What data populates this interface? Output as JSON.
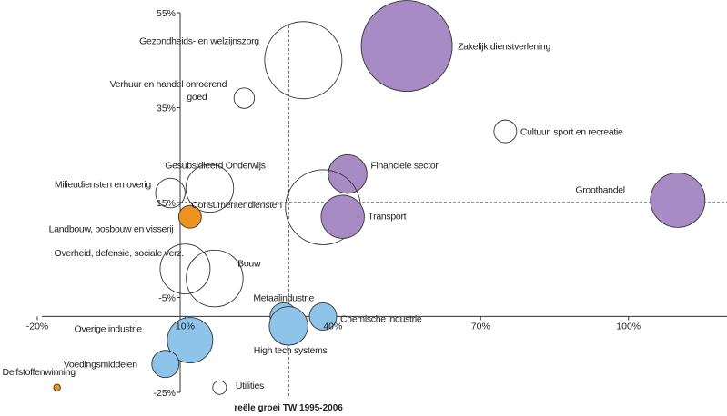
{
  "chart_data": {
    "type": "scatter",
    "subtype": "bubble",
    "xlabel": "reële groei TW 1995-2006",
    "ylabel": "",
    "xlim": [
      -20,
      120
    ],
    "ylim": [
      -25,
      55
    ],
    "x_ticks": [
      -20,
      10,
      40,
      70,
      100
    ],
    "x_tick_labels": [
      "-20%",
      "10%",
      "40%",
      "70%",
      "100%"
    ],
    "y_ticks": [
      55,
      35,
      15,
      -5,
      -25
    ],
    "y_tick_labels": [
      "55%",
      "35%",
      "15%",
      "-5%",
      "-25%"
    ],
    "reference_lines": {
      "x": 31,
      "y": 15
    },
    "grid": false,
    "legend": "none",
    "colors": {
      "purple": "#a78bc4",
      "blue": "#8ec3ea",
      "orange": "#f0921e",
      "white": "#ffffff",
      "outline": "#333333"
    },
    "points": [
      {
        "label": "Zakelijk dienstverlening",
        "x": 55,
        "y": 48,
        "size": 40,
        "color": "purple"
      },
      {
        "label": "Gezondheids- en welzijnszorg",
        "x": 34,
        "y": 45,
        "size": 34,
        "color": "white"
      },
      {
        "label": "Verhuur en handel onroerend goed",
        "x": 22,
        "y": 37,
        "size": 9,
        "color": "white"
      },
      {
        "label": "Cultuur, sport en recreatie",
        "x": 75,
        "y": 30,
        "size": 10,
        "color": "white"
      },
      {
        "label": "Financiele sector",
        "x": 43,
        "y": 21,
        "size": 17,
        "color": "purple"
      },
      {
        "label": "Groothandel",
        "x": 110,
        "y": 15.5,
        "size": 24,
        "color": "purple"
      },
      {
        "label": "Gesubsidieerd Onderwijs",
        "x": 15,
        "y": 18,
        "size": 21,
        "color": "white"
      },
      {
        "label": "Milieudiensten en overig",
        "x": 7,
        "y": 17,
        "size": 13,
        "color": "white"
      },
      {
        "label": "Consumentendiensten",
        "x": 38,
        "y": 14,
        "size": 33,
        "color": "white"
      },
      {
        "label": "Transport",
        "x": 42,
        "y": 12,
        "size": 19,
        "color": "purple"
      },
      {
        "label": "Landbouw, bosbouw en visserij",
        "x": 11,
        "y": 12,
        "size": 10,
        "color": "orange"
      },
      {
        "label": "Overheid, defensie, sociale verz.",
        "x": 10,
        "y": 1,
        "size": 22,
        "color": "white"
      },
      {
        "label": "Bouw",
        "x": 16,
        "y": -1,
        "size": 25,
        "color": "white"
      },
      {
        "label": "Metaalindustrie",
        "x": 30,
        "y": -9,
        "size": 12,
        "color": "blue"
      },
      {
        "label": "High tech systems",
        "x": 31,
        "y": -11,
        "size": 17,
        "color": "blue"
      },
      {
        "label": "Chemische industrie",
        "x": 38,
        "y": -9,
        "size": 12,
        "color": "blue"
      },
      {
        "label": "Overige industrie",
        "x": 11,
        "y": -14,
        "size": 20,
        "color": "blue"
      },
      {
        "label": "Voedingsmiddelen",
        "x": 6,
        "y": -19,
        "size": 12,
        "color": "blue"
      },
      {
        "label": "Delfstoffenwinning",
        "x": -16,
        "y": -24,
        "size": 3,
        "color": "orange"
      },
      {
        "label": "Utilities",
        "x": 17,
        "y": -24,
        "size": 6,
        "color": "white"
      }
    ]
  }
}
